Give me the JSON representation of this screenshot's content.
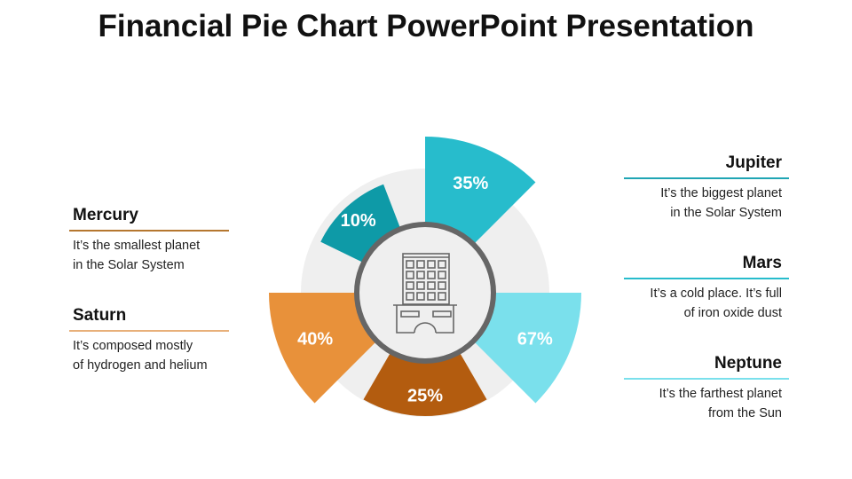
{
  "title": "Financial Pie Chart PowerPoint Presentation",
  "left_items": [
    {
      "heading": "Mercury",
      "line1": "It’s the smallest planet",
      "line2": "in the Solar System",
      "color": "#b5772f"
    },
    {
      "heading": "Saturn",
      "line1": "It’s composed mostly",
      "line2": "of hydrogen and helium",
      "color": "#e8b07a"
    }
  ],
  "right_items": [
    {
      "heading": "Jupiter",
      "line1": "It’s the biggest planet",
      "line2": "in the Solar System",
      "color": "#1fa5b4"
    },
    {
      "heading": "Mars",
      "line1": "It’s a cold place. It’s full",
      "line2": "of iron oxide dust",
      "color": "#27bccc"
    },
    {
      "heading": "Neptune",
      "line1": "It’s the farthest planet",
      "line2": "from the Sun",
      "color": "#7ae0ec"
    }
  ],
  "chart_data": {
    "type": "pie",
    "title": "",
    "center_icon": "building-icon",
    "segments": [
      {
        "label": "35%",
        "value": 35,
        "color": "#27bccc"
      },
      {
        "label": "67%",
        "value": 67,
        "color": "#7ae0ec"
      },
      {
        "label": "25%",
        "value": 25,
        "color": "#b35c0f"
      },
      {
        "label": "40%",
        "value": 40,
        "color": "#e8913a"
      },
      {
        "label": "10%",
        "value": 10,
        "color": "#0e9aa7"
      }
    ]
  }
}
